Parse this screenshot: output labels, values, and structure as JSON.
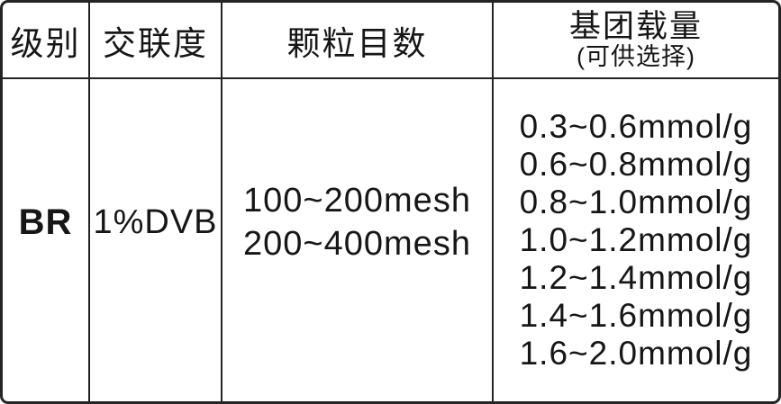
{
  "table": {
    "headers": {
      "grade": "级别",
      "crosslink": "交联度",
      "mesh": "颗粒目数",
      "loading": "基团载量",
      "loading_sub": "(可供选择)"
    },
    "row": {
      "grade": "BR",
      "crosslink": "1%DVB",
      "mesh_sizes": [
        "100~200mesh",
        "200~400mesh"
      ],
      "loading_options": [
        "0.3~0.6mmol/g",
        "0.6~0.8mmol/g",
        "0.8~1.0mmol/g",
        "1.0~1.2mmol/g",
        "1.2~1.4mmol/g",
        "1.4~1.6mmol/g",
        "1.6~2.0mmol/g"
      ]
    },
    "colors": {
      "border": "#242424",
      "text": "#161616",
      "background": "#ffffff"
    }
  }
}
